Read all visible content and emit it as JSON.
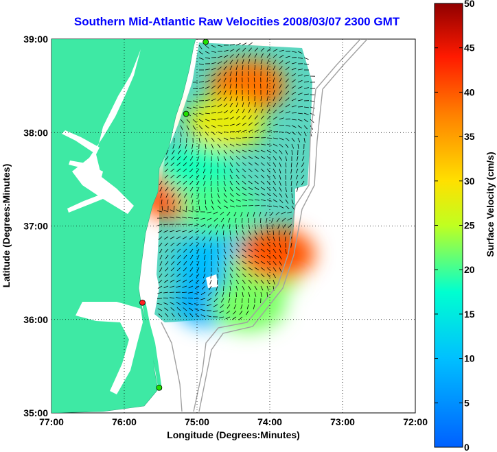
{
  "title": "Southern Mid-Atlantic Raw Velocities 2008/03/07 2300 GMT",
  "x_axis": {
    "label": "Longitude (Degrees:Minutes)",
    "ticks": [
      "77:00",
      "76:00",
      "75:00",
      "74:00",
      "73:00",
      "72:00"
    ]
  },
  "y_axis": {
    "label": "Latitude (Degrees:Minutes)",
    "ticks": [
      "39:00",
      "38:00",
      "37:00",
      "36:00",
      "35:00"
    ]
  },
  "colorbar": {
    "label": "Surface Velocity (cm/s)",
    "ticks": [
      "50",
      "45",
      "40",
      "35",
      "30",
      "25",
      "20",
      "15",
      "10",
      "5",
      "0"
    ],
    "colors": [
      "#0000ff",
      "#00ffff",
      "#ffff00",
      "#ff8000",
      "#ff0000",
      "#800000"
    ]
  },
  "colors": {
    "land": "#3ee9a4",
    "bathymetry": "#a0a0a0",
    "grid": "#000000",
    "site_green": "#22e000",
    "site_red": "#ff2020"
  },
  "chart_data": {
    "type": "map-field",
    "xlim": [
      -77,
      -72
    ],
    "ylim": [
      35,
      39
    ],
    "clim": [
      0,
      50
    ],
    "units": "cm/s",
    "grid": true,
    "stations": [
      {
        "lon": -74.88,
        "lat": 38.97,
        "color": "green"
      },
      {
        "lon": -75.15,
        "lat": 38.2,
        "color": "green"
      },
      {
        "lon": -75.75,
        "lat": 36.18,
        "color": "red"
      },
      {
        "lon": -75.52,
        "lat": 35.27,
        "color": "green"
      }
    ],
    "speed_regions": [
      {
        "lon": -74.3,
        "lat": 38.5,
        "speed": 38
      },
      {
        "lon": -74.6,
        "lat": 38.1,
        "speed": 28
      },
      {
        "lon": -75.3,
        "lat": 37.35,
        "speed": 40
      },
      {
        "lon": -75.0,
        "lat": 37.6,
        "speed": 18
      },
      {
        "lon": -74.7,
        "lat": 37.2,
        "speed": 20
      },
      {
        "lon": -74.8,
        "lat": 36.6,
        "speed": 10
      },
      {
        "lon": -74.1,
        "lat": 36.5,
        "speed": 22
      },
      {
        "lon": -73.9,
        "lat": 36.7,
        "speed": 40
      },
      {
        "lon": -74.8,
        "lat": 36.2,
        "speed": 8
      },
      {
        "lon": -74.3,
        "lat": 36.15,
        "speed": 22
      }
    ]
  }
}
